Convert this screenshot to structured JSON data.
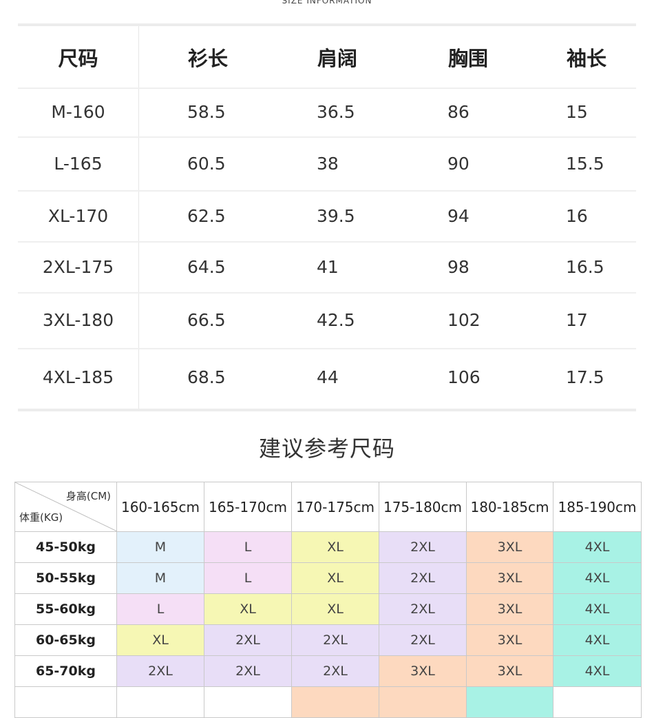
{
  "section_caption": "SIZE INFORMATION",
  "size_table": {
    "headers": [
      "尺码",
      "衫长",
      "肩阔",
      "胸围",
      "袖长"
    ],
    "rows": [
      [
        "M-160",
        "58.5",
        "36.5",
        "86",
        "15"
      ],
      [
        "L-165",
        "60.5",
        "38",
        "90",
        "15.5"
      ],
      [
        "XL-170",
        "62.5",
        "39.5",
        "94",
        "16"
      ],
      [
        "2XL-175",
        "64.5",
        "41",
        "98",
        "16.5"
      ],
      [
        "3XL-180",
        "66.5",
        "42.5",
        "102",
        "17"
      ],
      [
        "4XL-185",
        "68.5",
        "44",
        "106",
        "17.5"
      ]
    ]
  },
  "recommend": {
    "title": "建议参考尺码",
    "corner_height_label": "身高(CM)",
    "corner_weight_label": "体重(KG)",
    "heights": [
      "160-165cm",
      "165-170cm",
      "170-175cm",
      "175-180cm",
      "180-185cm",
      "185-190cm"
    ],
    "rows": [
      {
        "weight": "45-50kg",
        "sizes": [
          "M",
          "L",
          "XL",
          "2XL",
          "3XL",
          "4XL"
        ]
      },
      {
        "weight": "50-55kg",
        "sizes": [
          "M",
          "L",
          "XL",
          "2XL",
          "3XL",
          "4XL"
        ]
      },
      {
        "weight": "55-60kg",
        "sizes": [
          "L",
          "XL",
          "XL",
          "2XL",
          "3XL",
          "4XL"
        ]
      },
      {
        "weight": "60-65kg",
        "sizes": [
          "XL",
          "2XL",
          "2XL",
          "2XL",
          "3XL",
          "4XL"
        ]
      },
      {
        "weight": "65-70kg",
        "sizes": [
          "2XL",
          "2XL",
          "2XL",
          "3XL",
          "3XL",
          "4XL"
        ]
      },
      {
        "weight": "",
        "sizes": [
          "",
          "",
          "",
          "",
          "",
          ""
        ]
      }
    ],
    "size_colors": {
      "M": "#e3f1fb",
      "L": "#f5dff6",
      "XL": "#f6f7b4",
      "2XL": "#e8def7",
      "3XL": "#fdd9bf",
      "4XL": "#a8f2e5"
    },
    "partial_row_colors": [
      "#ffffff",
      "#ffffff",
      "#fdd9bf",
      "#fdd9bf",
      "#a8f2e5",
      "#ffffff"
    ]
  }
}
